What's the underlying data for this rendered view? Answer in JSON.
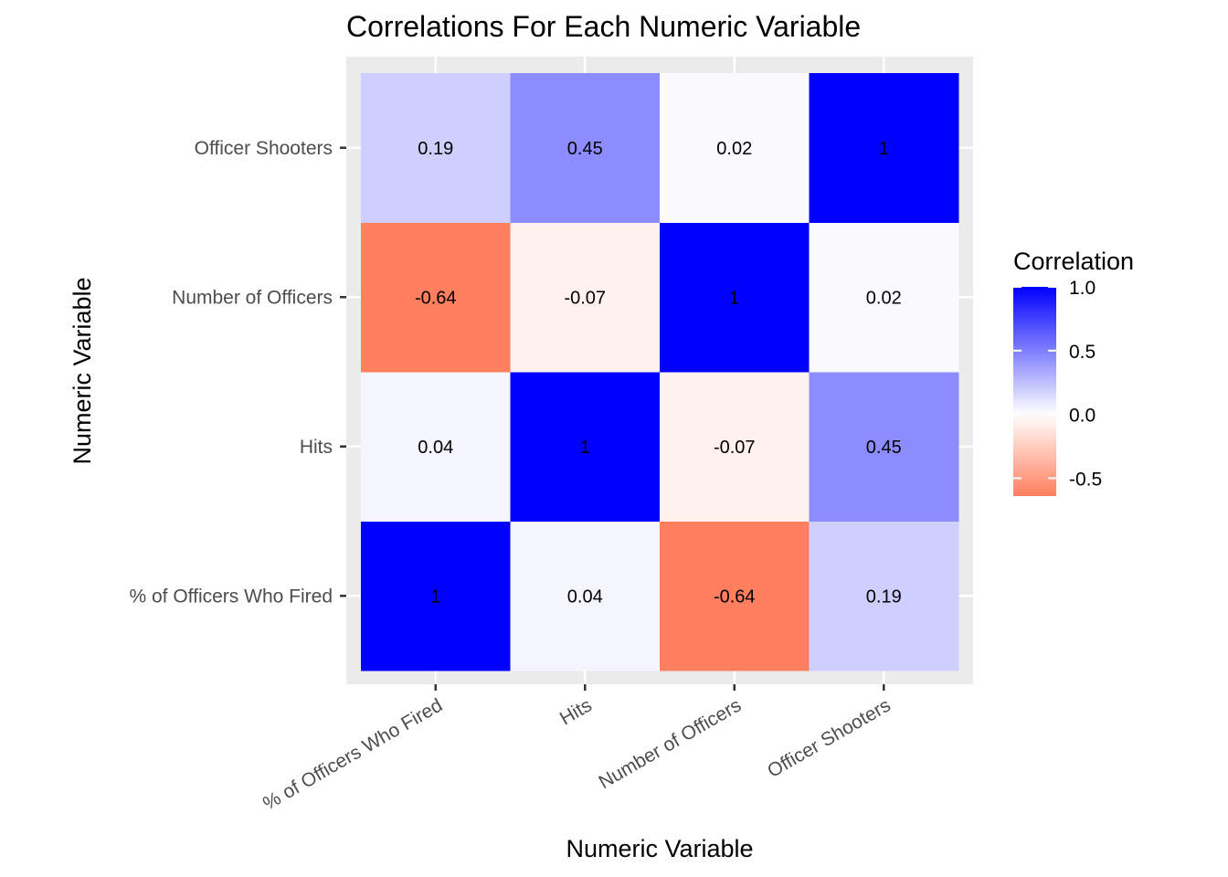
{
  "chart_data": {
    "type": "heatmap",
    "title": "Correlations For Each Numeric Variable",
    "xlabel": "Numeric Variable",
    "ylabel": "Numeric Variable",
    "x_categories": [
      "% of Officers Who Fired",
      "Hits",
      "Number of Officers",
      "Officer Shooters"
    ],
    "y_categories": [
      "% of Officers Who Fired",
      "Hits",
      "Number of Officers",
      "Officer Shooters"
    ],
    "cells": [
      {
        "x": "% of Officers Who Fired",
        "y": "% of Officers Who Fired",
        "value": 1,
        "label": "1"
      },
      {
        "x": "Hits",
        "y": "% of Officers Who Fired",
        "value": 0.04,
        "label": "0.04"
      },
      {
        "x": "Number of Officers",
        "y": "% of Officers Who Fired",
        "value": -0.64,
        "label": "-0.64"
      },
      {
        "x": "Officer Shooters",
        "y": "% of Officers Who Fired",
        "value": 0.19,
        "label": "0.19"
      },
      {
        "x": "% of Officers Who Fired",
        "y": "Hits",
        "value": 0.04,
        "label": "0.04"
      },
      {
        "x": "Hits",
        "y": "Hits",
        "value": 1,
        "label": "1"
      },
      {
        "x": "Number of Officers",
        "y": "Hits",
        "value": -0.07,
        "label": "-0.07"
      },
      {
        "x": "Officer Shooters",
        "y": "Hits",
        "value": 0.45,
        "label": "0.45"
      },
      {
        "x": "% of Officers Who Fired",
        "y": "Number of Officers",
        "value": -0.64,
        "label": "-0.64"
      },
      {
        "x": "Hits",
        "y": "Number of Officers",
        "value": -0.07,
        "label": "-0.07"
      },
      {
        "x": "Number of Officers",
        "y": "Number of Officers",
        "value": 1,
        "label": "1"
      },
      {
        "x": "Officer Shooters",
        "y": "Number of Officers",
        "value": 0.02,
        "label": "0.02"
      },
      {
        "x": "% of Officers Who Fired",
        "y": "Officer Shooters",
        "value": 0.19,
        "label": "0.19"
      },
      {
        "x": "Hits",
        "y": "Officer Shooters",
        "value": 0.45,
        "label": "0.45"
      },
      {
        "x": "Number of Officers",
        "y": "Officer Shooters",
        "value": 0.02,
        "label": "0.02"
      },
      {
        "x": "Officer Shooters",
        "y": "Officer Shooters",
        "value": 1,
        "label": "1"
      }
    ],
    "legend": {
      "title": "Correlation",
      "placement": "right",
      "ticks": [
        {
          "value": 1.0,
          "label": "1.0"
        },
        {
          "value": 0.5,
          "label": "0.5"
        },
        {
          "value": 0.0,
          "label": "0.0"
        },
        {
          "value": -0.5,
          "label": "-0.5"
        }
      ],
      "range": [
        -0.64,
        1
      ]
    },
    "colors": {
      "low": "#ff7f5e",
      "mid": "#ffffff",
      "high": "#0000ff",
      "panel_background": "#ebebeb",
      "gridline": "#ffffff"
    },
    "grid": true
  }
}
